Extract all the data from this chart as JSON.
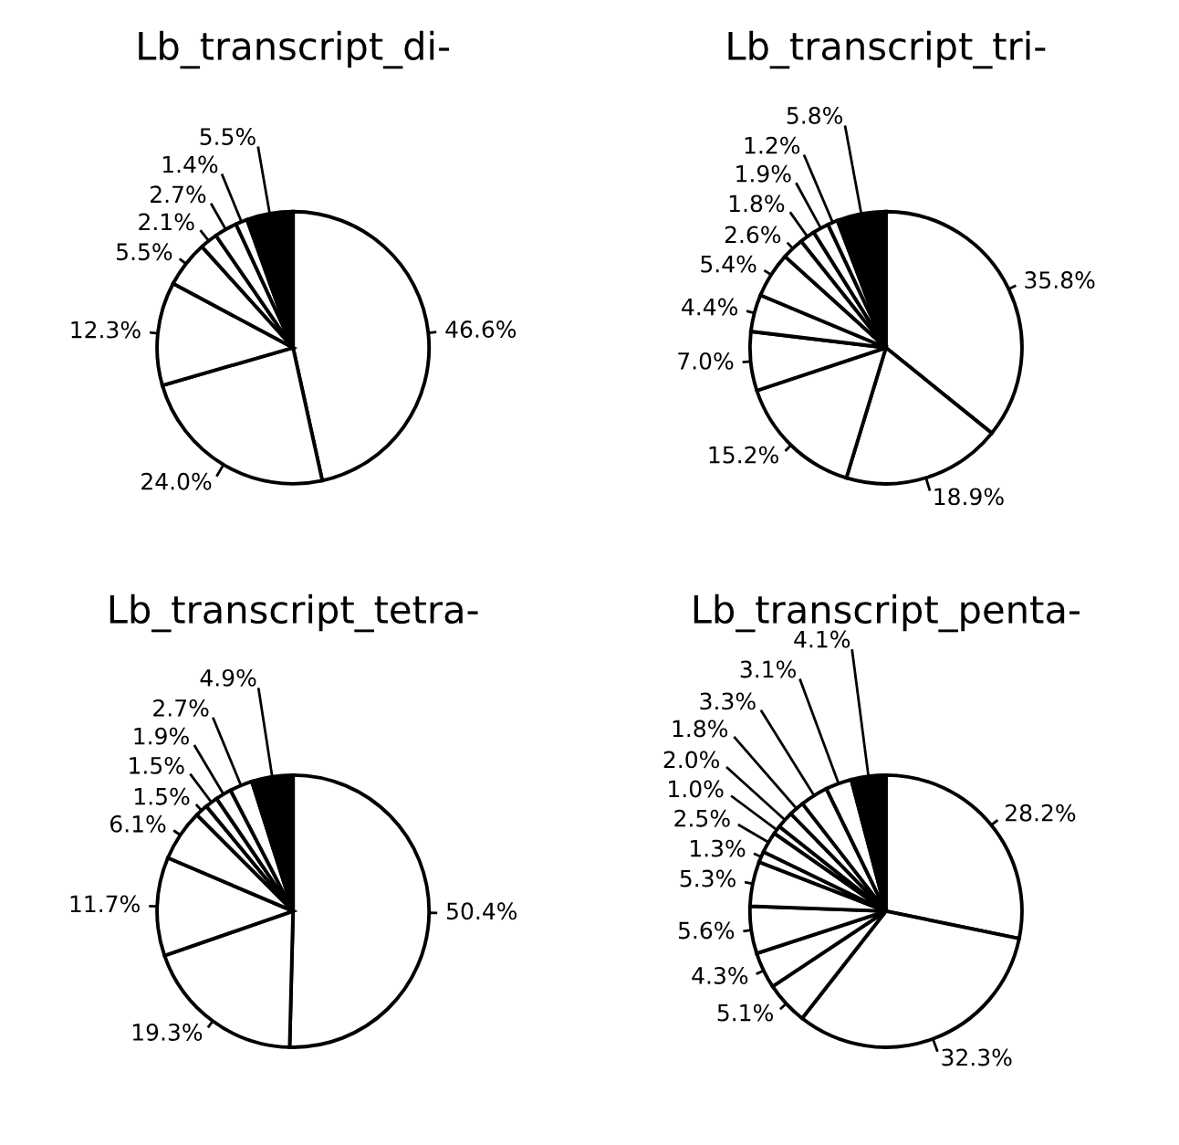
{
  "chart_data": [
    {
      "type": "pie",
      "title": "Lb_transcript_di-",
      "categories": [
        null,
        null,
        null,
        null,
        null,
        null,
        null,
        null
      ],
      "values": [
        46.6,
        24.0,
        12.3,
        5.5,
        2.1,
        2.7,
        1.4,
        5.5
      ],
      "value_labels": [
        "46.6%",
        "24.0%",
        "12.3%",
        "5.5%",
        "2.1%",
        "2.7%",
        "1.4%",
        "5.5%"
      ],
      "colors": [
        "#ffffff",
        "#ffffff",
        "#ffffff",
        "#ffffff",
        "#ffffff",
        "#ffffff",
        "#ffffff",
        "#000000"
      ]
    },
    {
      "type": "pie",
      "title": "Lb_transcript_tri-",
      "categories": [
        null,
        null,
        null,
        null,
        null,
        null,
        null,
        null,
        null,
        null,
        null
      ],
      "values": [
        35.8,
        18.9,
        15.2,
        7.0,
        4.4,
        5.4,
        2.6,
        1.8,
        1.9,
        1.2,
        5.8
      ],
      "value_labels": [
        "35.8%",
        "18.9%",
        "15.2%",
        "7.0%",
        "4.4%",
        "5.4%",
        "2.6%",
        "1.8%",
        "1.9%",
        "1.2%",
        "5.8%"
      ],
      "colors": [
        "#ffffff",
        "#ffffff",
        "#ffffff",
        "#ffffff",
        "#ffffff",
        "#ffffff",
        "#ffffff",
        "#ffffff",
        "#ffffff",
        "#ffffff",
        "#000000"
      ]
    },
    {
      "type": "pie",
      "title": "Lb_transcript_tetra-",
      "categories": [
        null,
        null,
        null,
        null,
        null,
        null,
        null,
        null,
        null
      ],
      "values": [
        50.4,
        19.3,
        11.7,
        6.1,
        1.5,
        1.5,
        1.9,
        2.7,
        4.9
      ],
      "value_labels": [
        "50.4%",
        "19.3%",
        "11.7%",
        "6.1%",
        "1.5%",
        "1.5%",
        "1.9%",
        "2.7%",
        "4.9%"
      ],
      "colors": [
        "#ffffff",
        "#ffffff",
        "#ffffff",
        "#ffffff",
        "#ffffff",
        "#ffffff",
        "#ffffff",
        "#ffffff",
        "#000000"
      ]
    },
    {
      "type": "pie",
      "title": "Lb_transcript_penta-",
      "categories": [
        null,
        null,
        null,
        null,
        null,
        null,
        null,
        null,
        null,
        null,
        null,
        null,
        null,
        null
      ],
      "values": [
        28.2,
        32.3,
        5.1,
        4.3,
        5.6,
        5.3,
        1.3,
        2.5,
        1.0,
        2.0,
        1.8,
        3.3,
        3.1,
        4.1
      ],
      "value_labels": [
        "28.2%",
        "32.3%",
        "5.1%",
        "4.3%",
        "5.6%",
        "5.3%",
        "1.3%",
        "2.5%",
        "1.0%",
        "2.0%",
        "1.8%",
        "3.3%",
        "3.1%",
        "4.1%"
      ],
      "colors": [
        "#ffffff",
        "#ffffff",
        "#ffffff",
        "#ffffff",
        "#ffffff",
        "#ffffff",
        "#ffffff",
        "#ffffff",
        "#ffffff",
        "#ffffff",
        "#ffffff",
        "#ffffff",
        "#ffffff",
        "#000000"
      ]
    }
  ]
}
